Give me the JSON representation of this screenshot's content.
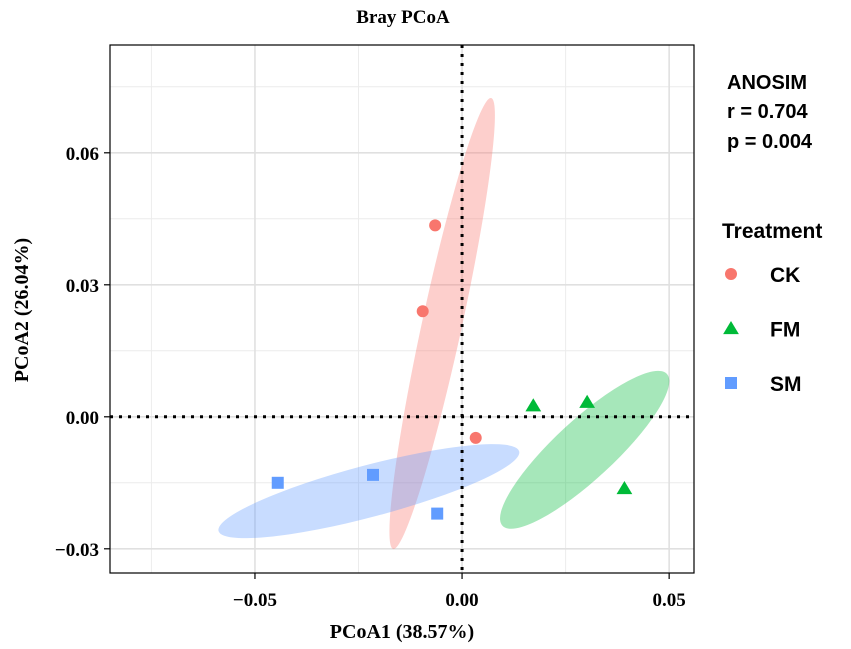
{
  "chart_data": {
    "type": "scatter",
    "title": "Bray PCoA",
    "xlabel": "PCoA1 (38.57%)",
    "ylabel": "PCoA2 (26.04%)",
    "xlim": [
      -0.085,
      0.056
    ],
    "ylim": [
      -0.0355,
      0.0845
    ],
    "x_ticks": [
      {
        "value": -0.05,
        "label": "−0.05"
      },
      {
        "value": 0.0,
        "label": "0.00"
      },
      {
        "value": 0.05,
        "label": "0.05"
      }
    ],
    "y_ticks": [
      {
        "value": -0.03,
        "label": "−0.03"
      },
      {
        "value": 0.0,
        "label": "0.00"
      },
      {
        "value": 0.03,
        "label": "0.03"
      },
      {
        "value": 0.06,
        "label": "0.06"
      }
    ],
    "minor_x": [
      -0.075,
      -0.025,
      0.025
    ],
    "minor_y": [
      -0.015,
      0.015,
      0.045,
      0.075
    ],
    "reference_lines": {
      "x": 0.0,
      "y": 0.0,
      "style": "dotted"
    },
    "grid": true,
    "legend": {
      "title": "Treatment",
      "position": "right",
      "entries": [
        {
          "label": "CK",
          "shape": "circle",
          "color": "#F8766D"
        },
        {
          "label": "FM",
          "shape": "triangle",
          "color": "#00BA38"
        },
        {
          "label": "SM",
          "shape": "square",
          "color": "#619CFF"
        }
      ]
    },
    "annotation": {
      "lines": [
        "ANOSIM",
        "r = 0.704",
        "p = 0.004"
      ]
    },
    "series": [
      {
        "name": "CK",
        "shape": "circle",
        "color": "#F8766D",
        "points": [
          [
            -0.0065,
            0.0435
          ],
          [
            -0.0095,
            0.024
          ],
          [
            0.0033,
            -0.0048
          ]
        ],
        "ellipse": {
          "cx": -0.0048,
          "cy": 0.0212,
          "rx": 0.0526,
          "ry": 0.0048,
          "angle_deg": 77,
          "fill": "#F8766D"
        }
      },
      {
        "name": "FM",
        "shape": "triangle",
        "color": "#00BA38",
        "points": [
          [
            0.0172,
            0.0025
          ],
          [
            0.0302,
            0.0033
          ],
          [
            0.0392,
            -0.0163
          ]
        ],
        "ellipse": {
          "cx": 0.0296,
          "cy": -0.0075,
          "rx": 0.0263,
          "ry": 0.0069,
          "angle_deg": 41,
          "fill": "#00BA38"
        }
      },
      {
        "name": "SM",
        "shape": "square",
        "color": "#619CFF",
        "points": [
          [
            -0.0445,
            -0.015
          ],
          [
            -0.0215,
            -0.0132
          ],
          [
            -0.006,
            -0.022
          ]
        ],
        "ellipse": {
          "cx": -0.0225,
          "cy": -0.0169,
          "rx": 0.0374,
          "ry": 0.0059,
          "angle_deg": 14,
          "fill": "#619CFF"
        }
      }
    ]
  }
}
